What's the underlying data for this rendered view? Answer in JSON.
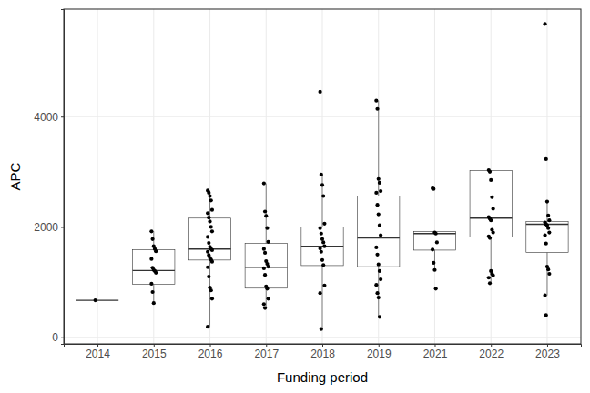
{
  "chart_data": {
    "type": "box",
    "x_label": "Funding period",
    "y_label": "APC",
    "categories": [
      "2014",
      "2015",
      "2016",
      "2017",
      "2018",
      "2019",
      "2021",
      "2022",
      "2023"
    ],
    "boxes": [
      {
        "whisker_low": 670,
        "q1": 670,
        "median": 670,
        "q3": 670,
        "whisker_high": 670
      },
      {
        "whisker_low": 620,
        "q1": 960,
        "median": 1210,
        "q3": 1590,
        "whisker_high": 1920
      },
      {
        "whisker_low": 190,
        "q1": 1400,
        "median": 1600,
        "q3": 2160,
        "whisker_high": 2660
      },
      {
        "whisker_low": 530,
        "q1": 890,
        "median": 1270,
        "q3": 1700,
        "whisker_high": 2790
      },
      {
        "whisker_low": 150,
        "q1": 1300,
        "median": 1650,
        "q3": 2000,
        "whisker_high": 2950
      },
      {
        "whisker_low": 370,
        "q1": 1280,
        "median": 1800,
        "q3": 2560,
        "whisker_high": 4290
      },
      {
        "whisker_low": 1220,
        "q1": 1580,
        "median": 1880,
        "q3": 1920,
        "whisker_high": 1920
      },
      {
        "whisker_low": 980,
        "q1": 1820,
        "median": 2160,
        "q3": 3020,
        "whisker_high": 3030
      },
      {
        "whisker_low": 760,
        "q1": 1540,
        "median": 2050,
        "q3": 2100,
        "whisker_high": 2460
      }
    ],
    "points": [
      [
        670
      ],
      [
        1920,
        1780,
        1650,
        1600,
        1560,
        1420,
        1260,
        1220,
        1200,
        1170,
        970,
        820,
        620
      ],
      [
        2660,
        2620,
        2560,
        2480,
        2310,
        2250,
        2170,
        2100,
        2000,
        1920,
        1820,
        1710,
        1640,
        1600,
        1580,
        1550,
        1490,
        1440,
        1410,
        1370,
        1270,
        1100,
        900,
        850,
        700,
        190
      ],
      [
        2790,
        2280,
        2200,
        1980,
        1730,
        1600,
        1530,
        1380,
        1330,
        1280,
        1250,
        1130,
        920,
        880,
        700,
        600,
        530
      ],
      [
        4450,
        2950,
        2760,
        2560,
        2060,
        1980,
        1880,
        1780,
        1720,
        1650,
        1610,
        1550,
        1400,
        1310,
        940,
        800,
        150
      ],
      [
        4290,
        4140,
        2870,
        2800,
        2650,
        2620,
        2400,
        2230,
        2030,
        1850,
        1630,
        1500,
        1320,
        1200,
        1050,
        950,
        800,
        720,
        370
      ],
      [
        2700,
        2690,
        1900,
        1880,
        1720,
        1590,
        1350,
        1220,
        880
      ],
      [
        3030,
        3000,
        2850,
        2540,
        2330,
        2180,
        2150,
        2120,
        1950,
        1900,
        1830,
        1800,
        1200,
        1150,
        1120,
        1080,
        980
      ],
      [
        5680,
        3230,
        2460,
        2210,
        2120,
        2080,
        2050,
        2030,
        1980,
        1900,
        1850,
        1700,
        1280,
        1230,
        1150,
        760,
        400
      ]
    ],
    "ylim": [
      -120,
      5950
    ],
    "yticks": [
      0,
      2000,
      4000
    ],
    "grid": true
  }
}
